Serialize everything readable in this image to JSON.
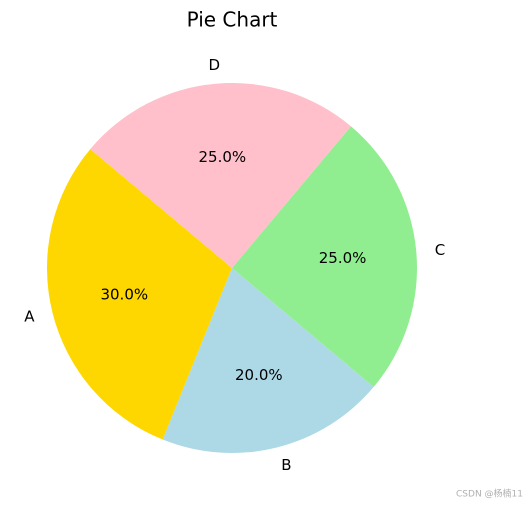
{
  "chart_data": {
    "type": "pie",
    "title": "Pie Chart",
    "categories": [
      "A",
      "B",
      "C",
      "D"
    ],
    "values": [
      30,
      20,
      25,
      25
    ],
    "value_labels": [
      "30.0%",
      "20.0%",
      "25.0%",
      "25.0%"
    ],
    "colors": [
      "#ffd700",
      "#add8e6",
      "#90ee90",
      "#ffc0cb"
    ],
    "start_angle": 140
  },
  "watermark": "CSDN @杨楠11"
}
